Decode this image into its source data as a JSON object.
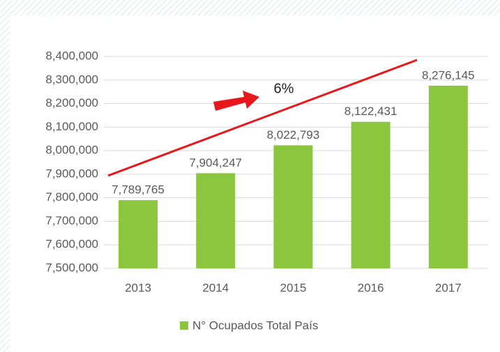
{
  "chart_data": {
    "type": "bar",
    "categories": [
      "2013",
      "2014",
      "2015",
      "2016",
      "2017"
    ],
    "values": [
      7789765,
      7904247,
      8022793,
      8122431,
      8276145
    ],
    "value_labels": [
      "7,789,765",
      "7,904,247",
      "8,022,793",
      "8,122,431",
      "8,276,145"
    ],
    "series_name": "N° Ocupados Total País",
    "color": "#8cc63e",
    "ylim": [
      7500000,
      8400000
    ],
    "yticks": [
      {
        "value": 7500000,
        "label": "7,500,000"
      },
      {
        "value": 7600000,
        "label": "7,600,000"
      },
      {
        "value": 7700000,
        "label": "7,700,000"
      },
      {
        "value": 7800000,
        "label": "7,800,000"
      },
      {
        "value": 7900000,
        "label": "7,900,000"
      },
      {
        "value": 8000000,
        "label": "8,000,000"
      },
      {
        "value": 8100000,
        "label": "8,100,000"
      },
      {
        "value": 8200000,
        "label": "8,200,000"
      },
      {
        "value": 8300000,
        "label": "8,300,000"
      },
      {
        "value": 8400000,
        "label": "8,400,000"
      }
    ],
    "grid": true,
    "annotation": "6%"
  }
}
